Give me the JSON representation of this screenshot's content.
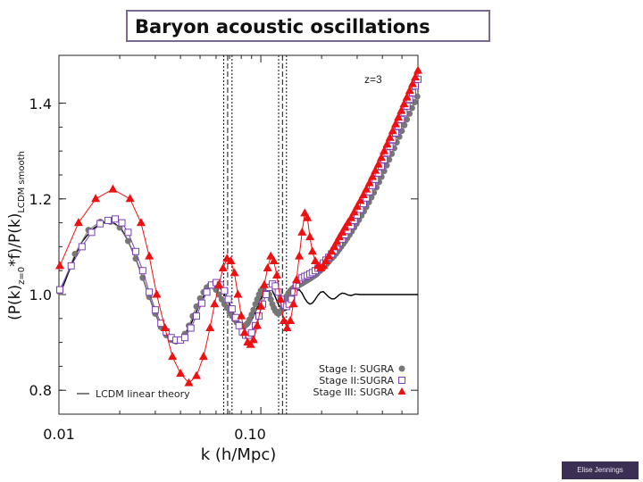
{
  "slide": {
    "title": "Baryon acoustic oscillations",
    "credit": "Elise Jennings"
  },
  "colors": {
    "stage1": "#777777",
    "stage2": "#7a3fb8",
    "stage3": "#ee1111",
    "theory": "#000000",
    "title_border": "#7a6a8e",
    "credit_bg": "#3c2f54"
  },
  "chart_data": {
    "type": "line",
    "annotation": "z=3",
    "xlabel": "k (h/Mpc)",
    "ylabel_main": "(P(k)",
    "ylabel_sub1": "z=0",
    "ylabel_mid": "*f)/P(k)",
    "ylabel_sub2": "LCDM smooth",
    "xscale": "log",
    "xlim": [
      0.01,
      0.6
    ],
    "ylim": [
      0.75,
      1.5
    ],
    "x_ticks": [
      0.01,
      0.1
    ],
    "x_tick_labels": [
      "0.01",
      "0.10"
    ],
    "y_ticks": [
      0.8,
      1.0,
      1.2,
      1.4
    ],
    "y_tick_labels": [
      "0.8",
      "1.0",
      "1.2",
      "1.4"
    ],
    "vertical_lines_k": [
      0.0655,
      0.0685,
      0.072,
      0.1225,
      0.128,
      0.134
    ],
    "legend": [
      {
        "label": "Stage I: SUGRA",
        "marker": "circle"
      },
      {
        "label": "Stage II:SUGRA",
        "marker": "square"
      },
      {
        "label": "Stage III: SUGRA",
        "marker": "triangle"
      }
    ],
    "theory_legend": "LCDM linear theory",
    "series": [
      {
        "name": "LCDM linear theory",
        "marker": "line",
        "x": [
          0.0101,
          0.011,
          0.012,
          0.013,
          0.0145,
          0.016,
          0.0175,
          0.019,
          0.0205,
          0.022,
          0.024,
          0.026,
          0.028,
          0.03,
          0.032,
          0.034,
          0.036,
          0.038,
          0.04,
          0.042,
          0.045,
          0.048,
          0.051,
          0.054,
          0.057,
          0.06,
          0.063,
          0.066,
          0.069,
          0.072,
          0.075,
          0.078,
          0.081,
          0.084,
          0.087,
          0.09,
          0.094,
          0.098,
          0.102,
          0.106,
          0.11,
          0.114,
          0.118,
          0.122,
          0.126,
          0.13,
          0.134,
          0.138,
          0.142,
          0.146,
          0.15,
          0.155,
          0.16,
          0.165,
          0.17,
          0.175,
          0.18,
          0.186,
          0.192,
          0.198,
          0.204,
          0.21,
          0.217,
          0.224,
          0.231,
          0.238,
          0.245,
          0.253,
          0.261,
          0.27,
          0.28,
          0.295,
          0.31,
          0.35,
          0.42,
          0.5,
          0.6
        ],
        "y": [
          1.0,
          1.04,
          1.08,
          1.11,
          1.135,
          1.148,
          1.152,
          1.148,
          1.135,
          1.112,
          1.075,
          1.035,
          0.995,
          0.96,
          0.932,
          0.915,
          0.905,
          0.902,
          0.905,
          0.915,
          0.938,
          0.965,
          0.99,
          1.008,
          1.018,
          1.02,
          1.013,
          1.0,
          0.985,
          0.968,
          0.952,
          0.94,
          0.932,
          0.93,
          0.935,
          0.946,
          0.963,
          0.983,
          1.0,
          1.012,
          1.015,
          1.008,
          0.995,
          0.98,
          0.97,
          0.966,
          0.968,
          0.976,
          0.988,
          1.0,
          1.008,
          1.01,
          1.003,
          0.992,
          0.984,
          0.98,
          0.982,
          0.99,
          0.999,
          1.005,
          1.006,
          1.001,
          0.995,
          0.991,
          0.991,
          0.995,
          1.0,
          1.003,
          1.002,
          0.999,
          0.998,
          1.001,
          1.0,
          1.0,
          1.0,
          1.0,
          1.0
        ]
      },
      {
        "name": "Stage I: SUGRA",
        "marker": "circle",
        "x": [
          0.0101,
          0.012,
          0.014,
          0.016,
          0.018,
          0.02,
          0.022,
          0.024,
          0.026,
          0.028,
          0.03,
          0.032,
          0.034,
          0.036,
          0.038,
          0.04,
          0.042,
          0.044,
          0.046,
          0.048,
          0.05,
          0.052,
          0.054,
          0.056,
          0.058,
          0.06,
          0.062,
          0.064,
          0.066,
          0.068,
          0.07,
          0.072,
          0.074,
          0.076,
          0.078,
          0.08,
          0.082,
          0.084,
          0.086,
          0.088,
          0.09,
          0.092,
          0.094,
          0.096,
          0.098,
          0.1,
          0.102,
          0.104,
          0.106,
          0.108,
          0.11,
          0.112,
          0.114,
          0.116,
          0.118,
          0.12,
          0.122,
          0.124,
          0.126,
          0.128,
          0.13,
          0.132,
          0.134,
          0.137,
          0.14,
          0.143,
          0.146,
          0.149,
          0.152,
          0.155,
          0.158,
          0.161,
          0.164,
          0.167,
          0.17,
          0.173,
          0.176,
          0.179,
          0.182,
          0.185,
          0.188,
          0.191,
          0.194,
          0.197,
          0.2,
          0.204,
          0.208,
          0.212,
          0.216,
          0.22,
          0.225,
          0.23,
          0.235,
          0.24,
          0.245,
          0.25,
          0.256,
          0.262,
          0.268,
          0.275,
          0.282,
          0.29,
          0.298,
          0.306,
          0.315,
          0.324,
          0.333,
          0.343,
          0.353,
          0.363,
          0.374,
          0.385,
          0.396,
          0.408,
          0.42,
          0.432,
          0.445,
          0.458,
          0.471,
          0.485,
          0.499,
          0.514,
          0.529,
          0.545,
          0.561,
          0.578,
          0.595
        ],
        "y": [
          1.005,
          1.085,
          1.135,
          1.152,
          1.152,
          1.14,
          1.112,
          1.075,
          1.035,
          0.995,
          0.96,
          0.932,
          0.915,
          0.905,
          0.902,
          0.905,
          0.918,
          0.935,
          0.955,
          0.975,
          0.992,
          1.005,
          1.015,
          1.02,
          1.018,
          1.01,
          1.0,
          0.99,
          0.98,
          0.972,
          0.962,
          0.955,
          0.948,
          0.942,
          0.938,
          0.935,
          0.934,
          0.936,
          0.94,
          0.948,
          0.958,
          0.968,
          0.98,
          0.99,
          1.0,
          1.008,
          1.012,
          1.015,
          1.012,
          1.008,
          1.0,
          0.99,
          0.98,
          0.972,
          0.966,
          0.962,
          0.96,
          0.962,
          0.966,
          0.972,
          0.98,
          0.988,
          0.996,
          1.003,
          1.008,
          1.012,
          1.015,
          1.017,
          1.018,
          1.02,
          1.022,
          1.024,
          1.026,
          1.028,
          1.03,
          1.032,
          1.034,
          1.036,
          1.038,
          1.04,
          1.042,
          1.045,
          1.048,
          1.05,
          1.053,
          1.056,
          1.06,
          1.064,
          1.068,
          1.072,
          1.076,
          1.08,
          1.085,
          1.09,
          1.095,
          1.1,
          1.106,
          1.112,
          1.118,
          1.125,
          1.132,
          1.14,
          1.148,
          1.156,
          1.165,
          1.174,
          1.183,
          1.193,
          1.203,
          1.213,
          1.224,
          1.235,
          1.246,
          1.258,
          1.27,
          1.282,
          1.294,
          1.306,
          1.318,
          1.33,
          1.342,
          1.354,
          1.366,
          1.378,
          1.39,
          1.402,
          1.414
        ]
      },
      {
        "name": "Stage II:SUGRA",
        "marker": "square",
        "x": [
          0.0101,
          0.0115,
          0.013,
          0.0145,
          0.016,
          0.0175,
          0.019,
          0.0205,
          0.022,
          0.024,
          0.026,
          0.028,
          0.03,
          0.032,
          0.034,
          0.036,
          0.038,
          0.04,
          0.042,
          0.045,
          0.048,
          0.051,
          0.054,
          0.057,
          0.06,
          0.063,
          0.066,
          0.069,
          0.072,
          0.075,
          0.078,
          0.081,
          0.084,
          0.087,
          0.09,
          0.094,
          0.098,
          0.102,
          0.106,
          0.11,
          0.114,
          0.118,
          0.122,
          0.126,
          0.13,
          0.134,
          0.138,
          0.142,
          0.146,
          0.15,
          0.155,
          0.16,
          0.165,
          0.17,
          0.175,
          0.18,
          0.186,
          0.192,
          0.198,
          0.204,
          0.21,
          0.217,
          0.224,
          0.231,
          0.238,
          0.245,
          0.253,
          0.261,
          0.27,
          0.28,
          0.29,
          0.3,
          0.311,
          0.322,
          0.333,
          0.345,
          0.357,
          0.369,
          0.382,
          0.395,
          0.408,
          0.422,
          0.436,
          0.45,
          0.465,
          0.48,
          0.496,
          0.512,
          0.529,
          0.546,
          0.564,
          0.582,
          0.6
        ],
        "y": [
          1.01,
          1.06,
          1.1,
          1.13,
          1.148,
          1.155,
          1.158,
          1.15,
          1.13,
          1.09,
          1.05,
          1.005,
          0.968,
          0.94,
          0.922,
          0.91,
          0.905,
          0.905,
          0.91,
          0.93,
          0.955,
          0.982,
          1.005,
          1.02,
          1.025,
          1.02,
          1.008,
          0.99,
          0.97,
          0.952,
          0.935,
          0.922,
          0.915,
          0.915,
          0.92,
          0.935,
          0.955,
          0.98,
          1.0,
          1.015,
          1.022,
          1.018,
          1.005,
          0.99,
          0.978,
          0.975,
          0.98,
          0.99,
          1.005,
          1.02,
          1.03,
          1.035,
          1.038,
          1.04,
          1.043,
          1.046,
          1.05,
          1.055,
          1.06,
          1.066,
          1.072,
          1.078,
          1.085,
          1.092,
          1.1,
          1.108,
          1.116,
          1.125,
          1.134,
          1.144,
          1.155,
          1.166,
          1.178,
          1.19,
          1.202,
          1.215,
          1.228,
          1.241,
          1.254,
          1.268,
          1.282,
          1.296,
          1.31,
          1.324,
          1.338,
          1.352,
          1.366,
          1.38,
          1.394,
          1.408,
          1.422,
          1.436,
          1.45
        ]
      },
      {
        "name": "Stage III: SUGRA",
        "marker": "triangle",
        "x": [
          0.0101,
          0.0125,
          0.0152,
          0.0185,
          0.0225,
          0.0255,
          0.028,
          0.0305,
          0.0335,
          0.0365,
          0.04,
          0.044,
          0.048,
          0.052,
          0.056,
          0.059,
          0.062,
          0.065,
          0.068,
          0.071,
          0.074,
          0.077,
          0.08,
          0.083,
          0.086,
          0.089,
          0.092,
          0.096,
          0.1,
          0.104,
          0.108,
          0.112,
          0.116,
          0.12,
          0.125,
          0.13,
          0.135,
          0.14,
          0.145,
          0.15,
          0.155,
          0.16,
          0.165,
          0.17,
          0.175,
          0.18,
          0.186,
          0.192,
          0.198,
          0.204,
          0.21,
          0.217,
          0.224,
          0.231,
          0.238,
          0.245,
          0.253,
          0.261,
          0.27,
          0.28,
          0.29,
          0.3,
          0.311,
          0.322,
          0.333,
          0.345,
          0.357,
          0.369,
          0.382,
          0.395,
          0.408,
          0.422,
          0.436,
          0.45,
          0.465,
          0.48,
          0.496,
          0.512,
          0.529,
          0.546,
          0.564,
          0.582,
          0.6
        ],
        "y": [
          1.06,
          1.15,
          1.2,
          1.22,
          1.2,
          1.15,
          1.08,
          1.0,
          0.93,
          0.87,
          0.835,
          0.815,
          0.83,
          0.87,
          0.93,
          0.98,
          1.02,
          1.055,
          1.075,
          1.07,
          1.045,
          1.0,
          0.955,
          0.92,
          0.9,
          0.895,
          0.905,
          0.935,
          0.975,
          1.02,
          1.055,
          1.08,
          1.07,
          1.04,
          0.99,
          0.945,
          0.93,
          0.945,
          0.98,
          1.03,
          1.08,
          1.13,
          1.17,
          1.16,
          1.12,
          1.09,
          1.07,
          1.06,
          1.055,
          1.06,
          1.07,
          1.08,
          1.09,
          1.1,
          1.11,
          1.12,
          1.13,
          1.14,
          1.15,
          1.16,
          1.172,
          1.184,
          1.196,
          1.208,
          1.22,
          1.233,
          1.246,
          1.259,
          1.272,
          1.286,
          1.3,
          1.314,
          1.328,
          1.342,
          1.356,
          1.37,
          1.384,
          1.398,
          1.412,
          1.426,
          1.44,
          1.454,
          1.468
        ]
      }
    ]
  }
}
